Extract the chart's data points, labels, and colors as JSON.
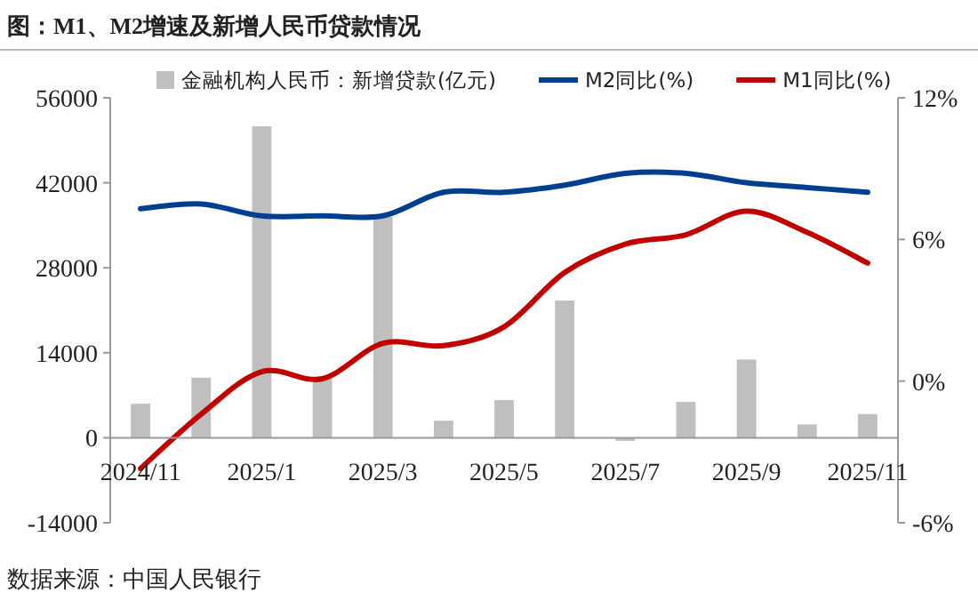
{
  "chart_data": {
    "type": "bar",
    "title": "图：M1、M2增速及新增人民币贷款情况",
    "categories": [
      "2024/11",
      null,
      "2025/1",
      null,
      "2025/3",
      null,
      "2025/5",
      null,
      "2025/7",
      null,
      "2025/9",
      null,
      "2025/11"
    ],
    "series": [
      {
        "name": "金融机构人民币：新增贷款(亿元)",
        "color": "#bfbfbf",
        "values": [
          5600,
          9900,
          51300,
          10100,
          36400,
          2800,
          6200,
          22600,
          -500,
          5900,
          12900,
          2200,
          3900
        ]
      },
      {
        "name": "M2同比(%)",
        "type": "line",
        "axis": "y2",
        "color": "#003f8f",
        "values": [
          7.3,
          7.5,
          7.0,
          7.0,
          7.0,
          8.0,
          8.0,
          8.3,
          8.8,
          8.8,
          8.4,
          8.2,
          8.0
        ]
      },
      {
        "name": "M1同比(%)",
        "type": "line",
        "axis": "y2",
        "color": "#c00000",
        "values": [
          -3.7,
          -1.4,
          0.4,
          0.1,
          1.6,
          1.5,
          2.3,
          4.6,
          5.8,
          6.2,
          7.2,
          6.3,
          5.0
        ]
      }
    ],
    "ylim": [
      -14000,
      56000
    ],
    "yticks": [
      -14000,
      0,
      14000,
      28000,
      42000,
      56000
    ],
    "y2lim": [
      -6,
      12
    ],
    "y2ticks": [
      {
        "value": -6,
        "label": "-6%"
      },
      {
        "value": 0,
        "label": "0%"
      },
      {
        "value": 6,
        "label": "6%"
      },
      {
        "value": 12,
        "label": "12%"
      }
    ],
    "legend": "top",
    "annotations": [
      "数据来源：中国人民银行"
    ]
  }
}
